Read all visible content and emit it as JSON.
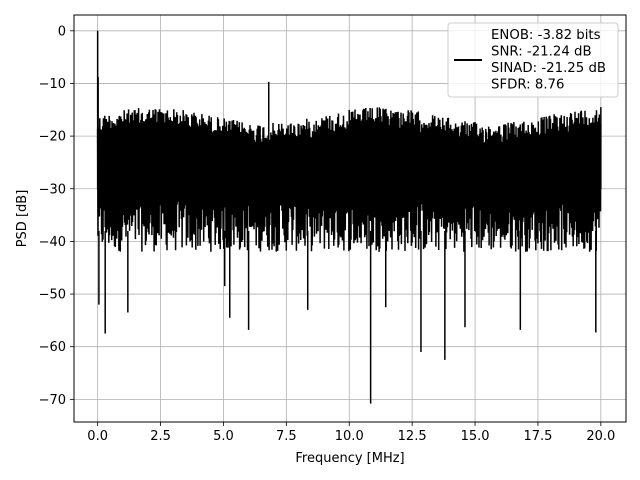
{
  "chart_data": {
    "type": "line",
    "title": "",
    "xlabel": "Frequency [MHz]",
    "ylabel": "PSD [dB]",
    "xlim": [
      -0.94,
      21.0
    ],
    "ylim": [
      -74.3,
      3.0
    ],
    "xticks": [
      0.0,
      2.5,
      5.0,
      7.5,
      10.0,
      12.5,
      15.0,
      17.5,
      20.0
    ],
    "xtick_labels": [
      "0.0",
      "2.5",
      "5.0",
      "7.5",
      "10.0",
      "12.5",
      "15.0",
      "17.5",
      "20.0"
    ],
    "yticks": [
      0,
      -10,
      -20,
      -30,
      -40,
      -50,
      -60,
      -70
    ],
    "ytick_labels": [
      "0",
      "−10",
      "−20",
      "−30",
      "−40",
      "−50",
      "−60",
      "−70"
    ],
    "grid": true,
    "legend_position": "top-right",
    "color": "#000000",
    "series": [
      {
        "name": "ENOB: -3.82 bits\nSNR: -21.24 dB\nSINAD: -21.25 dB\nSFDR: 8.76",
        "x_range": [
          0.0,
          20.0
        ],
        "noise_floor_upper_db": -14,
        "noise_floor_lower_db": -40,
        "points": [
          {
            "x": 0.0,
            "y": 0
          },
          {
            "x": 0.02,
            "y": -8.8
          },
          {
            "x": 0.05,
            "y": -52.0
          },
          {
            "x": 0.3,
            "y": -57.5
          },
          {
            "x": 1.2,
            "y": -53.5
          },
          {
            "x": 5.05,
            "y": -48.5
          },
          {
            "x": 5.25,
            "y": -54.5
          },
          {
            "x": 6.0,
            "y": -56.8
          },
          {
            "x": 6.8,
            "y": -9.7
          },
          {
            "x": 8.35,
            "y": -53.0
          },
          {
            "x": 10.85,
            "y": -70.8
          },
          {
            "x": 11.45,
            "y": -52.5
          },
          {
            "x": 12.85,
            "y": -61.0
          },
          {
            "x": 13.8,
            "y": -62.5
          },
          {
            "x": 14.6,
            "y": -56.3
          },
          {
            "x": 16.8,
            "y": -56.8
          },
          {
            "x": 19.8,
            "y": -57.3
          },
          {
            "x": 20.0,
            "y": -14.5
          }
        ]
      }
    ]
  }
}
